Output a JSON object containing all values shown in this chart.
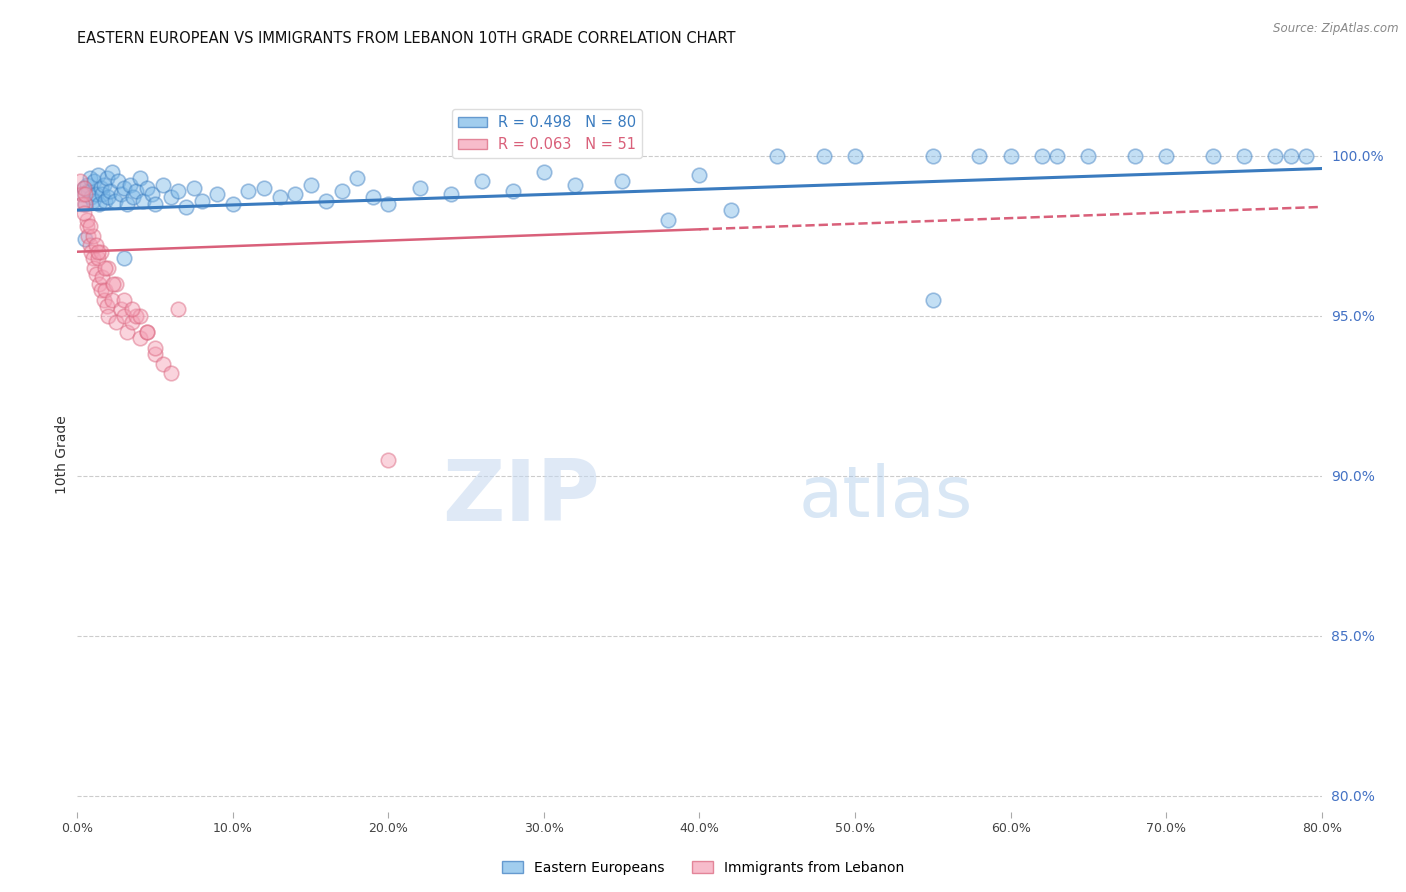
{
  "title": "EASTERN EUROPEAN VS IMMIGRANTS FROM LEBANON 10TH GRADE CORRELATION CHART",
  "source": "Source: ZipAtlas.com",
  "ylabel_left": "10th Grade",
  "x_range": [
    0.0,
    80.0
  ],
  "y_range": [
    79.5,
    101.8
  ],
  "blue_R": 0.498,
  "blue_N": 80,
  "pink_R": 0.063,
  "pink_N": 51,
  "blue_color": "#7ab8e8",
  "pink_color": "#f4a0b5",
  "blue_line_color": "#3a7bbf",
  "pink_line_color": "#d9607a",
  "legend_blue_label": "R = 0.498   N = 80",
  "legend_pink_label": "R = 0.063   N = 51",
  "watermark_zip": "ZIP",
  "watermark_atlas": "atlas",
  "background_color": "#ffffff",
  "grid_color": "#cccccc",
  "y_grid_vals": [
    80.0,
    85.0,
    90.0,
    95.0,
    100.0
  ],
  "right_tick_color": "#4472c4",
  "blue_trendline": [
    0.0,
    98.3,
    80.0,
    99.6
  ],
  "pink_trendline_solid": [
    0.0,
    97.0,
    40.0,
    97.7
  ],
  "pink_trendline_dash": [
    40.0,
    97.7,
    80.0,
    98.4
  ],
  "blue_scatter_x": [
    0.3,
    0.4,
    0.5,
    0.6,
    0.7,
    0.8,
    0.9,
    1.0,
    1.1,
    1.2,
    1.3,
    1.4,
    1.5,
    1.6,
    1.7,
    1.8,
    1.9,
    2.0,
    2.1,
    2.2,
    2.4,
    2.6,
    2.8,
    3.0,
    3.2,
    3.4,
    3.6,
    3.8,
    4.0,
    4.2,
    4.5,
    4.8,
    5.0,
    5.5,
    6.0,
    6.5,
    7.0,
    7.5,
    8.0,
    9.0,
    10.0,
    11.0,
    12.0,
    13.0,
    14.0,
    15.0,
    16.0,
    17.0,
    18.0,
    19.0,
    20.0,
    22.0,
    24.0,
    26.0,
    28.0,
    30.0,
    32.0,
    35.0,
    40.0,
    45.0,
    48.0,
    50.0,
    55.0,
    58.0,
    60.0,
    63.0,
    65.0,
    68.0,
    70.0,
    73.0,
    75.0,
    77.0,
    78.0,
    79.0,
    55.0,
    38.0,
    42.0,
    62.0,
    0.5,
    3.0
  ],
  "blue_scatter_y": [
    98.8,
    99.0,
    98.5,
    99.1,
    98.9,
    99.3,
    98.7,
    98.6,
    99.2,
    98.8,
    99.4,
    98.5,
    99.0,
    98.8,
    99.1,
    98.6,
    99.3,
    98.7,
    98.9,
    99.5,
    98.6,
    99.2,
    98.8,
    99.0,
    98.5,
    99.1,
    98.7,
    98.9,
    99.3,
    98.6,
    99.0,
    98.8,
    98.5,
    99.1,
    98.7,
    98.9,
    98.4,
    99.0,
    98.6,
    98.8,
    98.5,
    98.9,
    99.0,
    98.7,
    98.8,
    99.1,
    98.6,
    98.9,
    99.3,
    98.7,
    98.5,
    99.0,
    98.8,
    99.2,
    98.9,
    99.5,
    99.1,
    99.2,
    99.4,
    100.0,
    100.0,
    100.0,
    100.0,
    100.0,
    100.0,
    100.0,
    100.0,
    100.0,
    100.0,
    100.0,
    100.0,
    100.0,
    100.0,
    100.0,
    95.5,
    98.0,
    98.3,
    100.0,
    97.4,
    96.8
  ],
  "pink_scatter_x": [
    0.2,
    0.3,
    0.4,
    0.5,
    0.6,
    0.7,
    0.8,
    0.9,
    1.0,
    1.1,
    1.2,
    1.3,
    1.4,
    1.5,
    1.6,
    1.7,
    1.8,
    1.9,
    2.0,
    2.2,
    2.5,
    2.8,
    3.0,
    3.2,
    3.5,
    3.8,
    4.0,
    4.5,
    5.0,
    5.5,
    6.0,
    0.3,
    0.6,
    1.0,
    1.5,
    2.0,
    2.5,
    3.0,
    4.0,
    5.0,
    0.4,
    0.8,
    1.2,
    1.8,
    2.3,
    3.5,
    4.5,
    6.5,
    0.5,
    1.3,
    20.0
  ],
  "pink_scatter_y": [
    99.2,
    98.8,
    99.0,
    98.5,
    97.8,
    97.5,
    97.2,
    97.0,
    96.8,
    96.5,
    96.3,
    96.8,
    96.0,
    95.8,
    96.2,
    95.5,
    95.8,
    95.3,
    95.0,
    95.5,
    94.8,
    95.2,
    95.0,
    94.5,
    94.8,
    95.0,
    94.3,
    94.5,
    93.8,
    93.5,
    93.2,
    98.5,
    98.0,
    97.5,
    97.0,
    96.5,
    96.0,
    95.5,
    95.0,
    94.0,
    98.2,
    97.8,
    97.2,
    96.5,
    96.0,
    95.2,
    94.5,
    95.2,
    98.8,
    97.0,
    90.5
  ]
}
